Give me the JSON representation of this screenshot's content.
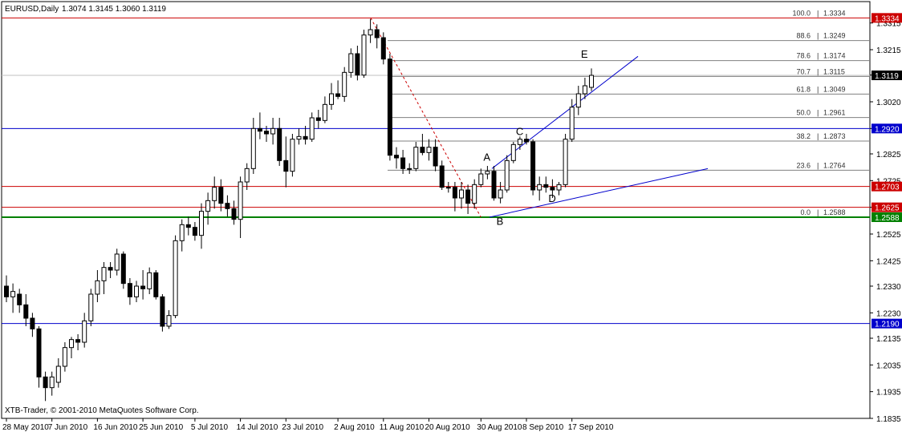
{
  "header": {
    "symbol": "EURUSD,Daily",
    "ohlc": "1.3074 1.3145 1.3060 1.3119"
  },
  "copyright": "XTB-Trader, © 2001-2010 MetaQuotes Software Corp.",
  "colors": {
    "candle_bull": "#ffffff",
    "candle_bear": "#000000",
    "red_line": "#cc0000",
    "blue_line": "#0000cc",
    "green_line": "#008000",
    "fib_line": "#808080"
  },
  "chart_data": {
    "type": "candlestick",
    "title": "EURUSD,Daily",
    "ylim": [
      1.1835,
      1.3395
    ],
    "y_ticks": [
      "1.3315",
      "1.3215",
      "1.3120",
      "1.3020",
      "1.2920",
      "1.2825",
      "1.2725",
      "1.2625",
      "1.2525",
      "1.2425",
      "1.2330",
      "1.2230",
      "1.2135",
      "1.2035",
      "1.1935",
      "1.1835"
    ],
    "x_ticks": [
      {
        "i": 0,
        "label": "28 May 2010"
      },
      {
        "i": 7,
        "label": "7 Jun 2010"
      },
      {
        "i": 14,
        "label": "16 Jun 2010"
      },
      {
        "i": 21,
        "label": "25 Jun 2010"
      },
      {
        "i": 29,
        "label": "5 Jul 2010"
      },
      {
        "i": 36,
        "label": "14 Jul 2010"
      },
      {
        "i": 43,
        "label": "23 Jul 2010"
      },
      {
        "i": 51,
        "label": "2 Aug 2010"
      },
      {
        "i": 58,
        "label": "11 Aug 2010"
      },
      {
        "i": 65,
        "label": "20 Aug 2010"
      },
      {
        "i": 73,
        "label": "30 Aug 2010"
      },
      {
        "i": 80,
        "label": "8 Sep 2010"
      },
      {
        "i": 87,
        "label": "17 Sep 2010"
      }
    ],
    "candles": [
      [
        1.233,
        1.237,
        1.227,
        1.229
      ],
      [
        1.229,
        1.234,
        1.223,
        1.231
      ],
      [
        1.23,
        1.232,
        1.223,
        1.226
      ],
      [
        1.226,
        1.23,
        1.218,
        1.221
      ],
      [
        1.221,
        1.223,
        1.214,
        1.217
      ],
      [
        1.217,
        1.218,
        1.195,
        1.199
      ],
      [
        1.199,
        1.201,
        1.19,
        1.195
      ],
      [
        1.195,
        1.201,
        1.192,
        1.199
      ],
      [
        1.197,
        1.206,
        1.195,
        1.203
      ],
      [
        1.203,
        1.212,
        1.201,
        1.21
      ],
      [
        1.21,
        1.214,
        1.206,
        1.213
      ],
      [
        1.213,
        1.215,
        1.209,
        1.212
      ],
      [
        1.212,
        1.223,
        1.21,
        1.22
      ],
      [
        1.22,
        1.232,
        1.218,
        1.23
      ],
      [
        1.23,
        1.239,
        1.227,
        1.235
      ],
      [
        1.235,
        1.242,
        1.23,
        1.24
      ],
      [
        1.24,
        1.242,
        1.236,
        1.239
      ],
      [
        1.239,
        1.247,
        1.237,
        1.245
      ],
      [
        1.245,
        1.246,
        1.232,
        1.234
      ],
      [
        1.234,
        1.236,
        1.226,
        1.229
      ],
      [
        1.229,
        1.235,
        1.227,
        1.233
      ],
      [
        1.233,
        1.239,
        1.228,
        1.232
      ],
      [
        1.232,
        1.24,
        1.23,
        1.238
      ],
      [
        1.238,
        1.239,
        1.228,
        1.229
      ],
      [
        1.229,
        1.23,
        1.216,
        1.218
      ],
      [
        1.218,
        1.224,
        1.217,
        1.222
      ],
      [
        1.222,
        1.252,
        1.221,
        1.25
      ],
      [
        1.25,
        1.258,
        1.246,
        1.256
      ],
      [
        1.256,
        1.259,
        1.252,
        1.255
      ],
      [
        1.255,
        1.257,
        1.25,
        1.252
      ],
      [
        1.252,
        1.264,
        1.247,
        1.261
      ],
      [
        1.261,
        1.268,
        1.256,
        1.265
      ],
      [
        1.265,
        1.274,
        1.262,
        1.27
      ],
      [
        1.27,
        1.273,
        1.261,
        1.264
      ],
      [
        1.264,
        1.267,
        1.259,
        1.262
      ],
      [
        1.262,
        1.265,
        1.256,
        1.258
      ],
      [
        1.258,
        1.274,
        1.251,
        1.272
      ],
      [
        1.272,
        1.279,
        1.269,
        1.277
      ],
      [
        1.277,
        1.296,
        1.275,
        1.292
      ],
      [
        1.292,
        1.298,
        1.288,
        1.291
      ],
      [
        1.291,
        1.293,
        1.287,
        1.29
      ],
      [
        1.29,
        1.296,
        1.286,
        1.292
      ],
      [
        1.292,
        1.296,
        1.278,
        1.28
      ],
      [
        1.28,
        1.289,
        1.27,
        1.276
      ],
      [
        1.276,
        1.29,
        1.274,
        1.288
      ],
      [
        1.288,
        1.292,
        1.286,
        1.289
      ],
      [
        1.289,
        1.293,
        1.286,
        1.288
      ],
      [
        1.288,
        1.298,
        1.287,
        1.296
      ],
      [
        1.296,
        1.299,
        1.292,
        1.295
      ],
      [
        1.295,
        1.304,
        1.294,
        1.301
      ],
      [
        1.301,
        1.309,
        1.299,
        1.305
      ],
      [
        1.305,
        1.31,
        1.303,
        1.304
      ],
      [
        1.304,
        1.315,
        1.302,
        1.313
      ],
      [
        1.313,
        1.322,
        1.311,
        1.32
      ],
      [
        1.32,
        1.323,
        1.31,
        1.312
      ],
      [
        1.312,
        1.329,
        1.311,
        1.327
      ],
      [
        1.327,
        1.333,
        1.324,
        1.329
      ],
      [
        1.329,
        1.331,
        1.322,
        1.326
      ],
      [
        1.326,
        1.328,
        1.316,
        1.318
      ],
      [
        1.318,
        1.32,
        1.28,
        1.282
      ],
      [
        1.282,
        1.285,
        1.277,
        1.281
      ],
      [
        1.281,
        1.284,
        1.275,
        1.277
      ],
      [
        1.277,
        1.279,
        1.275,
        1.277
      ],
      [
        1.277,
        1.287,
        1.276,
        1.285
      ],
      [
        1.285,
        1.29,
        1.282,
        1.283
      ],
      [
        1.283,
        1.288,
        1.28,
        1.285
      ],
      [
        1.285,
        1.288,
        1.276,
        1.278
      ],
      [
        1.278,
        1.28,
        1.269,
        1.27
      ],
      [
        1.27,
        1.272,
        1.268,
        1.27
      ],
      [
        1.27,
        1.272,
        1.261,
        1.266
      ],
      [
        1.266,
        1.272,
        1.262,
        1.269
      ],
      [
        1.269,
        1.271,
        1.26,
        1.264
      ],
      [
        1.264,
        1.273,
        1.262,
        1.271
      ],
      [
        1.271,
        1.277,
        1.27,
        1.275
      ],
      [
        1.275,
        1.278,
        1.273,
        1.276
      ],
      [
        1.276,
        1.278,
        1.265,
        1.266
      ],
      [
        1.266,
        1.272,
        1.264,
        1.269
      ],
      [
        1.269,
        1.282,
        1.268,
        1.28
      ],
      [
        1.28,
        1.287,
        1.279,
        1.286
      ],
      [
        1.286,
        1.289,
        1.284,
        1.288
      ],
      [
        1.288,
        1.29,
        1.286,
        1.287
      ],
      [
        1.287,
        1.288,
        1.267,
        1.269
      ],
      [
        1.269,
        1.274,
        1.265,
        1.271
      ],
      [
        1.271,
        1.274,
        1.268,
        1.27
      ],
      [
        1.27,
        1.273,
        1.266,
        1.269
      ],
      [
        1.269,
        1.272,
        1.267,
        1.271
      ],
      [
        1.271,
        1.29,
        1.27,
        1.288
      ],
      [
        1.288,
        1.303,
        1.287,
        1.3
      ],
      [
        1.3,
        1.308,
        1.297,
        1.305
      ],
      [
        1.305,
        1.311,
        1.303,
        1.308
      ],
      [
        1.3074,
        1.3145,
        1.306,
        1.3119
      ]
    ],
    "hlines": [
      {
        "name": "resistance-1.3334",
        "y": 1.3334,
        "color": "#cc0000",
        "label": "1.3334"
      },
      {
        "name": "current-price-1.3119",
        "y": 1.3119,
        "color": "#c0c0c0",
        "label": "1.3119"
      },
      {
        "name": "level-1.2920",
        "y": 1.292,
        "color": "#0000cc",
        "label": "1.2920"
      },
      {
        "name": "level-1.2703",
        "y": 1.2703,
        "color": "#cc0000",
        "label": "1.2703"
      },
      {
        "name": "level-1.2625",
        "y": 1.2625,
        "color": "#cc0000",
        "label": "1.2625"
      },
      {
        "name": "support-1.2588",
        "y": 1.2588,
        "color": "#008000",
        "label": "1.2588"
      },
      {
        "name": "level-1.2190",
        "y": 1.219,
        "color": "#0000cc",
        "label": "1.2190"
      }
    ],
    "fib_levels": [
      {
        "pct": "100.0",
        "val": "1.3334",
        "y": 1.3334
      },
      {
        "pct": "88.6",
        "val": "1.3249",
        "y": 1.3249
      },
      {
        "pct": "78.6",
        "val": "1.3174",
        "y": 1.3174
      },
      {
        "pct": "70.7",
        "val": "1.3115",
        "y": 1.3115
      },
      {
        "pct": "61.8",
        "val": "1.3049",
        "y": 1.3049
      },
      {
        "pct": "50.0",
        "val": "1.2961",
        "y": 1.2961
      },
      {
        "pct": "38.2",
        "val": "1.2873",
        "y": 1.2873
      },
      {
        "pct": "23.6",
        "val": "1.2764",
        "y": 1.2764
      },
      {
        "pct": "0.0",
        "val": "1.2588",
        "y": 1.2588
      }
    ],
    "pattern_points": [
      {
        "label": "A",
        "i": 74,
        "y": 1.28
      },
      {
        "label": "B",
        "i": 76,
        "y": 1.256
      },
      {
        "label": "C",
        "i": 79,
        "y": 1.2895
      },
      {
        "label": "D",
        "i": 84,
        "y": 1.2645
      },
      {
        "label": "E",
        "i": 89,
        "y": 1.3185
      }
    ]
  }
}
